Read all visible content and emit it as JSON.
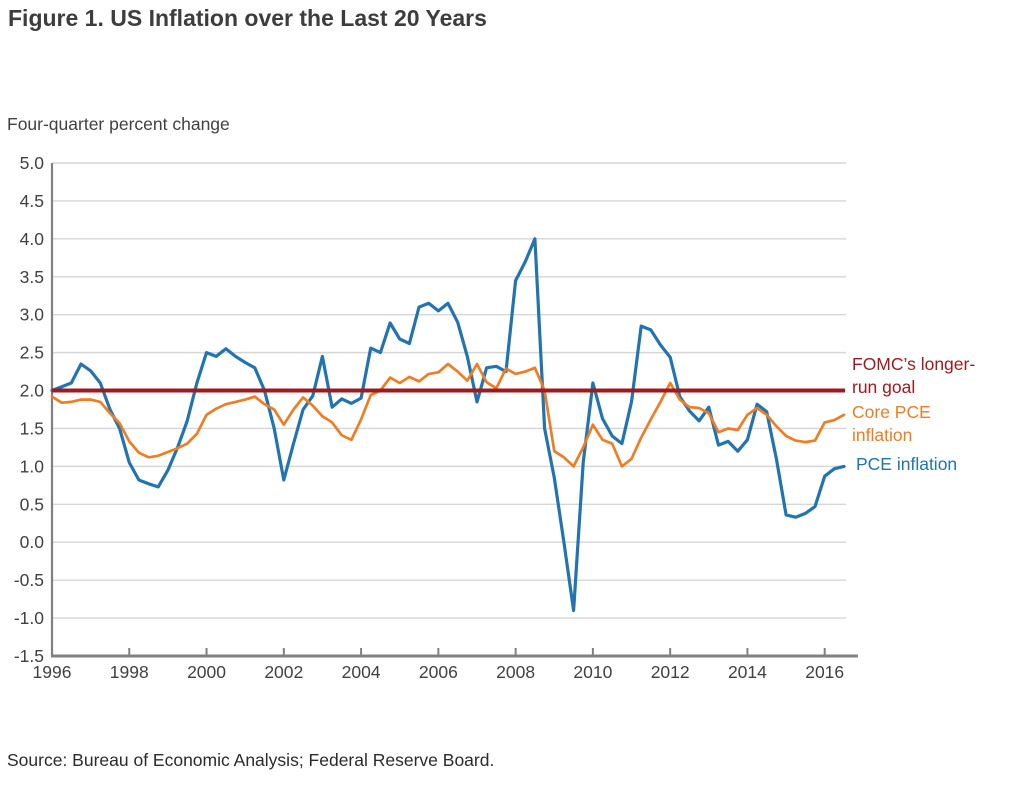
{
  "title": "Figure 1. US Inflation over the Last 20 Years",
  "y_axis_label": "Four-quarter percent change",
  "source": "Source: Bureau of Economic Analysis; Federal Reserve Board.",
  "legend": [
    {
      "id": "fomc",
      "lines": [
        "FOMC’s longer-",
        "run goal"
      ],
      "color": "#9c1b20"
    },
    {
      "id": "core",
      "lines": [
        "Core PCE",
        "inflation"
      ],
      "color": "#ee7d23"
    },
    {
      "id": "pce",
      "lines": [
        "PCE inflation"
      ],
      "color": "#2274b0"
    }
  ],
  "colors": {
    "pce_line": "#2274b0",
    "core_line": "#ee7d23",
    "fomc_line": "#9c1b20",
    "gridline": "#d6d6d6",
    "axis": "#808080",
    "tick_label": "#414141"
  },
  "chart_data": {
    "type": "line",
    "title": "Figure 1. US Inflation over the Last 20 Years",
    "xlabel": "",
    "ylabel": "Four-quarter percent change",
    "xlim": [
      1996,
      2016.55
    ],
    "ylim": [
      -1.5,
      5.0
    ],
    "grid": true,
    "legend_position": "right-outside",
    "x_ticks": [
      1996,
      1998,
      2000,
      2002,
      2004,
      2006,
      2008,
      2010,
      2012,
      2014,
      2016
    ],
    "y_ticks": [
      5.0,
      4.5,
      4.0,
      3.5,
      3.0,
      2.5,
      2.0,
      1.5,
      1.0,
      0.5,
      0.0,
      -0.5,
      -1.0,
      -1.5
    ],
    "x_start": 1996.0,
    "x_step": 0.25,
    "series": [
      {
        "name": "PCE inflation",
        "color": "#2274b0",
        "width": 3.2,
        "values": [
          2.0,
          2.05,
          2.1,
          2.35,
          2.26,
          2.1,
          1.75,
          1.5,
          1.05,
          0.82,
          0.77,
          0.73,
          0.95,
          1.25,
          1.6,
          2.1,
          2.5,
          2.45,
          2.55,
          2.45,
          2.37,
          2.3,
          2.0,
          1.5,
          0.82,
          1.3,
          1.75,
          1.93,
          2.45,
          1.78,
          1.89,
          1.83,
          1.9,
          2.56,
          2.5,
          2.89,
          2.68,
          2.62,
          3.1,
          3.15,
          3.05,
          3.15,
          2.9,
          2.45,
          1.85,
          2.3,
          2.32,
          2.25,
          3.45,
          3.7,
          4.0,
          1.5,
          0.85,
          0.0,
          -0.9,
          1.05,
          2.1,
          1.63,
          1.4,
          1.3,
          1.85,
          2.85,
          2.8,
          2.6,
          2.44,
          1.92,
          1.73,
          1.6,
          1.78,
          1.28,
          1.33,
          1.2,
          1.35,
          1.82,
          1.72,
          1.1,
          0.36,
          0.33,
          0.38,
          0.47,
          0.87,
          0.97,
          1.0
        ]
      },
      {
        "name": "Core PCE inflation",
        "color": "#ee7d23",
        "width": 2.7,
        "values": [
          1.92,
          1.84,
          1.85,
          1.88,
          1.88,
          1.85,
          1.7,
          1.57,
          1.33,
          1.18,
          1.12,
          1.14,
          1.19,
          1.24,
          1.3,
          1.43,
          1.68,
          1.76,
          1.82,
          1.85,
          1.88,
          1.92,
          1.82,
          1.75,
          1.55,
          1.75,
          1.91,
          1.8,
          1.66,
          1.58,
          1.41,
          1.35,
          1.62,
          1.94,
          2.0,
          2.17,
          2.1,
          2.18,
          2.12,
          2.22,
          2.24,
          2.35,
          2.25,
          2.13,
          2.35,
          2.11,
          2.03,
          2.29,
          2.22,
          2.25,
          2.3,
          2.0,
          1.2,
          1.12,
          1.0,
          1.25,
          1.55,
          1.35,
          1.3,
          1.0,
          1.1,
          1.38,
          1.62,
          1.85,
          2.1,
          1.88,
          1.78,
          1.77,
          1.7,
          1.45,
          1.5,
          1.48,
          1.68,
          1.77,
          1.68,
          1.53,
          1.4,
          1.34,
          1.32,
          1.34,
          1.58,
          1.61,
          1.68
        ]
      },
      {
        "name": "FOMC's longer-run goal",
        "color": "#9c1b20",
        "width": 4,
        "constant": 2.0
      }
    ]
  }
}
